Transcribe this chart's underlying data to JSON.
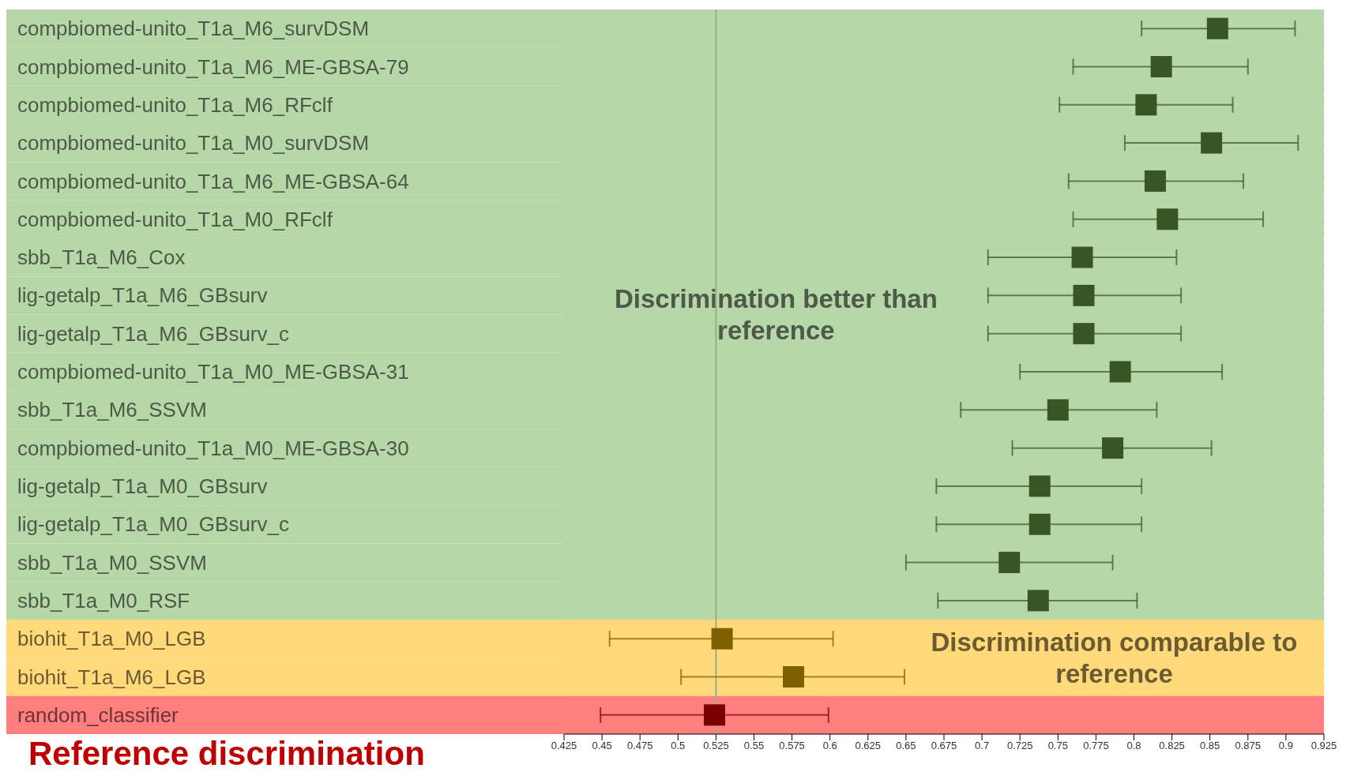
{
  "chart_data": {
    "type": "scatter",
    "orientation": "horizontal",
    "marker": "square",
    "grid": "x",
    "categories": [
      "compbiomed-unito_T1a_M6_survDSM",
      "compbiomed-unito_T1a_M6_ME-GBSA-79",
      "compbiomed-unito_T1a_M6_RFclf",
      "compbiomed-unito_T1a_M0_survDSM",
      "compbiomed-unito_T1a_M6_ME-GBSA-64",
      "compbiomed-unito_T1a_M0_RFclf",
      "sbb_T1a_M6_Cox",
      "lig-getalp_T1a_M6_GBsurv",
      "lig-getalp_T1a_M6_GBsurv_c",
      "compbiomed-unito_T1a_M0_ME-GBSA-31",
      "sbb_T1a_M6_SSVM",
      "compbiomed-unito_T1a_M0_ME-GBSA-30",
      "lig-getalp_T1a_M0_GBsurv",
      "lig-getalp_T1a_M0_GBsurv_c",
      "sbb_T1a_M0_SSVM",
      "sbb_T1a_M0_RSF",
      "biohit_T1a_M0_LGB",
      "biohit_T1a_M6_LGB",
      "random_classifier"
    ],
    "values": [
      0.855,
      0.818,
      0.808,
      0.851,
      0.814,
      0.822,
      0.766,
      0.767,
      0.767,
      0.791,
      0.75,
      0.786,
      0.738,
      0.738,
      0.718,
      0.737,
      0.529,
      0.576,
      0.524
    ],
    "errors": [
      [
        0.805,
        0.906
      ],
      [
        0.76,
        0.875
      ],
      [
        0.751,
        0.865
      ],
      [
        0.794,
        0.908
      ],
      [
        0.757,
        0.872
      ],
      [
        0.76,
        0.885
      ],
      [
        0.704,
        0.828
      ],
      [
        0.704,
        0.831
      ],
      [
        0.704,
        0.831
      ],
      [
        0.725,
        0.858
      ],
      [
        0.686,
        0.815
      ],
      [
        0.72,
        0.851
      ],
      [
        0.67,
        0.805
      ],
      [
        0.67,
        0.805
      ],
      [
        0.65,
        0.786
      ],
      [
        0.671,
        0.802
      ],
      [
        0.455,
        0.602
      ],
      [
        0.502,
        0.649
      ],
      [
        0.449,
        0.599
      ]
    ],
    "colors": [
      "#375623",
      "#375623",
      "#375623",
      "#375623",
      "#375623",
      "#375623",
      "#375623",
      "#375623",
      "#375623",
      "#375623",
      "#375623",
      "#375623",
      "#375623",
      "#375623",
      "#375623",
      "#375623",
      "#7f6000",
      "#7f6000",
      "#7b0000"
    ],
    "xlim": [
      0.425,
      0.925
    ],
    "xticks": [
      0.425,
      0.45,
      0.475,
      0.5,
      0.525,
      0.55,
      0.575,
      0.6,
      0.625,
      0.65,
      0.675,
      0.7,
      0.725,
      0.75,
      0.775,
      0.8,
      0.825,
      0.85,
      0.875,
      0.9,
      0.925
    ],
    "ref_lines": [
      {
        "axis": "x",
        "value": 0.525,
        "color": "#94b184"
      }
    ],
    "annotations": [
      "Reference discrimination"
    ],
    "bands": [
      {
        "axis": "y",
        "from": "compbiomed-unito_T1a_M6_survDSM",
        "to": "sbb_T1a_M0_RSF",
        "label": "Discrimination better than reference",
        "color": "#b6d7a8"
      },
      {
        "axis": "y",
        "from": "biohit_T1a_M0_LGB",
        "to": "biohit_T1a_M6_LGB",
        "label": "Discrimination comparable to reference",
        "color": "#ffd97a"
      },
      {
        "axis": "y",
        "from": "random_classifier",
        "to": "random_classifier",
        "color": "#ff7f7f"
      }
    ]
  }
}
